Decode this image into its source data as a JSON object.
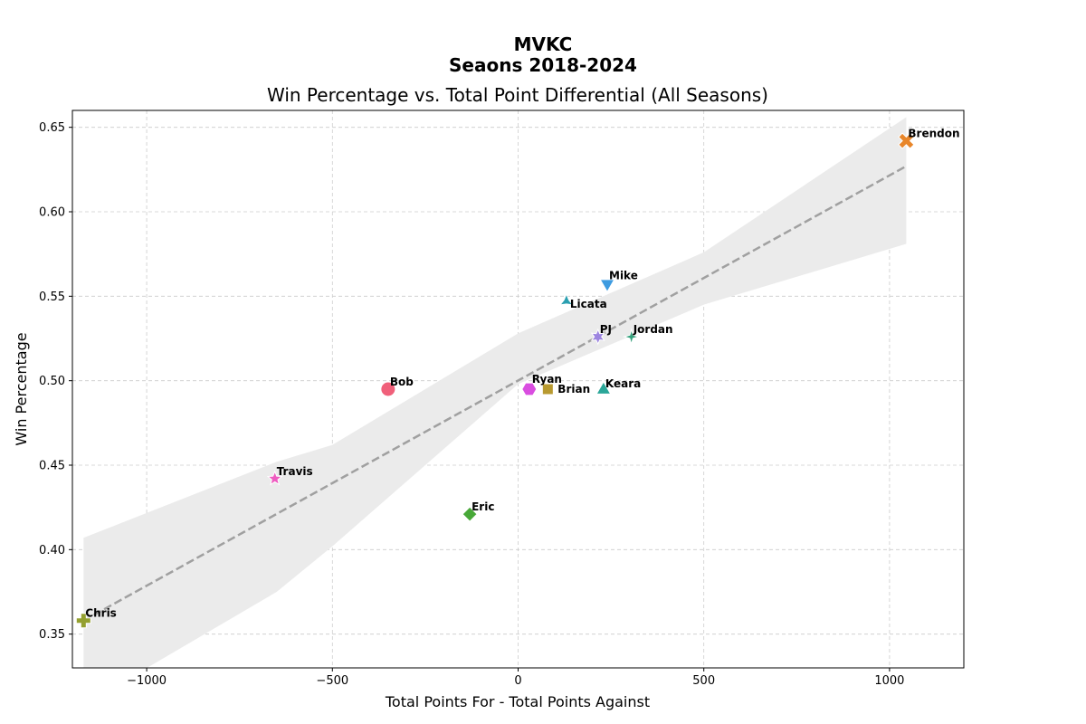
{
  "figure": {
    "suptitle_line1": "MVKC",
    "suptitle_line2": "Seaons 2018-2024"
  },
  "chart_data": {
    "type": "scatter",
    "title": "Win Percentage vs. Total Point Differential (All Seasons)",
    "xlabel": "Total Points For - Total Points Against",
    "ylabel": "Win Percentage",
    "xlim": [
      -1200,
      1200
    ],
    "ylim": [
      0.33,
      0.66
    ],
    "xticks": [
      -1000,
      -500,
      0,
      500,
      1000
    ],
    "xtick_labels": [
      "−1000",
      "−500",
      "0",
      "500",
      "1000"
    ],
    "yticks": [
      0.35,
      0.4,
      0.45,
      0.5,
      0.55,
      0.6,
      0.65
    ],
    "ytick_labels": [
      "0.35",
      "0.40",
      "0.45",
      "0.50",
      "0.55",
      "0.60",
      "0.65"
    ],
    "grid": true,
    "points": [
      {
        "name": "Brendon",
        "x": 1045,
        "y": 0.642,
        "marker": "x",
        "color": "#e8862a"
      },
      {
        "name": "Mike",
        "x": 240,
        "y": 0.558,
        "marker": "triangle-down",
        "color": "#3d9be0"
      },
      {
        "name": "Licata",
        "x": 130,
        "y": 0.547,
        "marker": "tri",
        "color": "#2a9fb0"
      },
      {
        "name": "PJ",
        "x": 215,
        "y": 0.526,
        "marker": "star6",
        "color": "#9d85e0"
      },
      {
        "name": "Jordan",
        "x": 305,
        "y": 0.526,
        "marker": "star4",
        "color": "#33a07a"
      },
      {
        "name": "Bob",
        "x": -350,
        "y": 0.495,
        "marker": "circle",
        "color": "#f0607a"
      },
      {
        "name": "Ryan",
        "x": 30,
        "y": 0.495,
        "marker": "hexagon",
        "color": "#d94ee0"
      },
      {
        "name": "Brian",
        "x": 80,
        "y": 0.495,
        "marker": "square",
        "color": "#b89a30"
      },
      {
        "name": "Keara",
        "x": 230,
        "y": 0.494,
        "marker": "triangle-up",
        "color": "#2aa698"
      },
      {
        "name": "Travis",
        "x": -655,
        "y": 0.442,
        "marker": "star5",
        "color": "#ee5cc0"
      },
      {
        "name": "Eric",
        "x": -130,
        "y": 0.421,
        "marker": "diamond",
        "color": "#48a838"
      },
      {
        "name": "Chris",
        "x": -1170,
        "y": 0.358,
        "marker": "plus",
        "color": "#94a030"
      }
    ],
    "regression": {
      "line_x": [
        -1170,
        1045
      ],
      "line_y": [
        0.358,
        0.627
      ],
      "line_color": "#a0a0a0",
      "band_color": "#ebebeb",
      "band": [
        {
          "x": -1170,
          "lo": 0.308,
          "hi": 0.407
        },
        {
          "x": -650,
          "lo": 0.375,
          "hi": 0.452
        },
        {
          "x": -500,
          "lo": 0.402,
          "hi": 0.462
        },
        {
          "x": 0,
          "lo": 0.498,
          "hi": 0.528
        },
        {
          "x": 500,
          "lo": 0.545,
          "hi": 0.576
        },
        {
          "x": 1045,
          "lo": 0.581,
          "hi": 0.656
        }
      ]
    }
  }
}
